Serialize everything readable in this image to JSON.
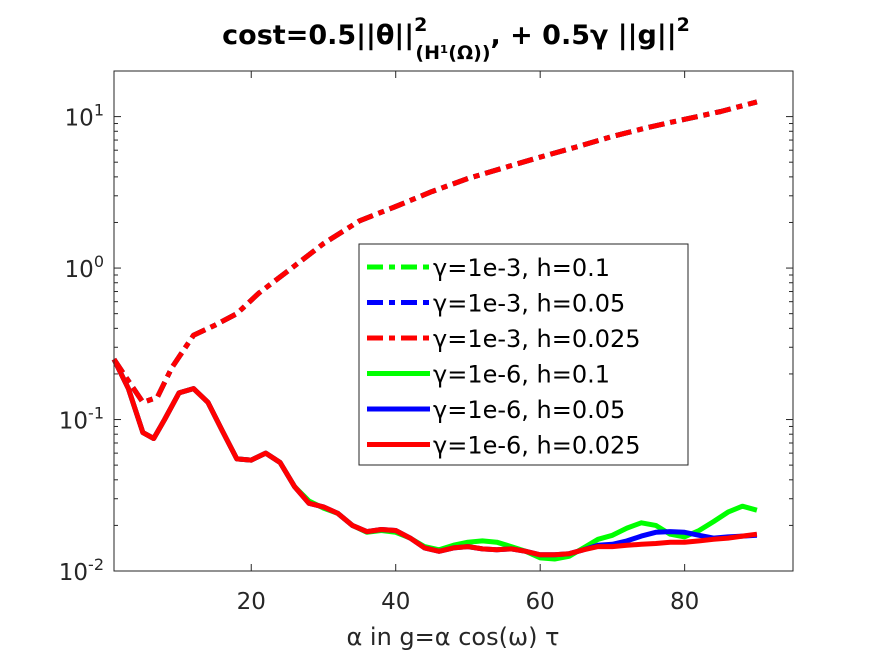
{
  "chart_data": {
    "type": "line",
    "title": {
      "text": "cost=0.5||θ||",
      "sub": "(H¹(Ω))",
      "sup1": "2",
      "tail": ", + 0.5γ ||g||",
      "sup2": "2"
    },
    "xlabel": "α in g=α cos(ω) τ",
    "ylabel": "",
    "xlim": [
      1,
      95
    ],
    "ylim": [
      0.01,
      20
    ],
    "yscale": "log",
    "grid": false,
    "x_ticks": [
      20,
      40,
      60,
      80
    ],
    "x_tick_labels": [
      "20",
      "40",
      "60",
      "80"
    ],
    "y_ticks": [
      {
        "value": 0.01,
        "base": "10",
        "exp": "-2"
      },
      {
        "value": 0.1,
        "base": "10",
        "exp": "-1"
      },
      {
        "value": 1,
        "base": "10",
        "exp": "0"
      },
      {
        "value": 10,
        "base": "10",
        "exp": "1"
      }
    ],
    "legend_position": "center-right",
    "series": [
      {
        "name": "γ=1e-3, h=0.1",
        "color": "#00ff00",
        "dash": true,
        "x": [
          1,
          3,
          5,
          7,
          9,
          12,
          15,
          18,
          21,
          25,
          30,
          35,
          40,
          45,
          50,
          55,
          60,
          65,
          70,
          75,
          80,
          85,
          90
        ],
        "y": [
          0.25,
          0.18,
          0.13,
          0.14,
          0.22,
          0.36,
          0.42,
          0.5,
          0.68,
          0.95,
          1.45,
          2.05,
          2.55,
          3.2,
          3.9,
          4.6,
          5.4,
          6.3,
          7.4,
          8.5,
          9.6,
          10.8,
          12.5
        ]
      },
      {
        "name": "γ=1e-3, h=0.05",
        "color": "#0000ff",
        "dash": true,
        "x": [
          1,
          3,
          5,
          7,
          9,
          12,
          15,
          18,
          21,
          25,
          30,
          35,
          40,
          45,
          50,
          55,
          60,
          65,
          70,
          75,
          80,
          85,
          90
        ],
        "y": [
          0.25,
          0.18,
          0.13,
          0.14,
          0.22,
          0.36,
          0.42,
          0.5,
          0.68,
          0.95,
          1.45,
          2.05,
          2.55,
          3.2,
          3.9,
          4.6,
          5.4,
          6.3,
          7.4,
          8.5,
          9.6,
          10.8,
          12.5
        ]
      },
      {
        "name": "γ=1e-3, h=0.025",
        "color": "#ff0000",
        "dash": true,
        "x": [
          1,
          3,
          5,
          7,
          9,
          12,
          15,
          18,
          21,
          25,
          30,
          35,
          40,
          45,
          50,
          55,
          60,
          65,
          70,
          75,
          80,
          85,
          90
        ],
        "y": [
          0.25,
          0.18,
          0.13,
          0.14,
          0.22,
          0.36,
          0.42,
          0.5,
          0.68,
          0.95,
          1.45,
          2.05,
          2.55,
          3.2,
          3.9,
          4.6,
          5.4,
          6.3,
          7.4,
          8.5,
          9.6,
          10.8,
          12.5
        ]
      },
      {
        "name": "γ=1e-6, h=0.1",
        "color": "#00ff00",
        "dash": false,
        "x": [
          1,
          3,
          5,
          6.5,
          8,
          10,
          12,
          14,
          16,
          18,
          20,
          22,
          24,
          26,
          28,
          30,
          32,
          34,
          36,
          38,
          40,
          42,
          44,
          46,
          48,
          50,
          52,
          54,
          56,
          58,
          60,
          62,
          64,
          66,
          68,
          70,
          72,
          74,
          76,
          78,
          80,
          82,
          84,
          86,
          88,
          90
        ],
        "y": [
          0.25,
          0.16,
          0.082,
          0.075,
          0.1,
          0.15,
          0.16,
          0.13,
          0.084,
          0.055,
          0.054,
          0.06,
          0.052,
          0.036,
          0.029,
          0.026,
          0.024,
          0.02,
          0.018,
          0.0185,
          0.018,
          0.0165,
          0.0145,
          0.0138,
          0.0148,
          0.0155,
          0.0158,
          0.0155,
          0.0145,
          0.0135,
          0.0122,
          0.012,
          0.0125,
          0.0142,
          0.0162,
          0.0172,
          0.0192,
          0.0208,
          0.02,
          0.0175,
          0.0168,
          0.0185,
          0.0212,
          0.0245,
          0.0268,
          0.0252
        ]
      },
      {
        "name": "γ=1e-6, h=0.05",
        "color": "#0000ff",
        "dash": false,
        "x": [
          1,
          3,
          5,
          6.5,
          8,
          10,
          12,
          14,
          16,
          18,
          20,
          22,
          24,
          26,
          28,
          30,
          32,
          34,
          36,
          38,
          40,
          42,
          44,
          46,
          48,
          50,
          52,
          54,
          56,
          58,
          60,
          62,
          64,
          66,
          68,
          70,
          72,
          74,
          76,
          78,
          80,
          82,
          84,
          86,
          88,
          90
        ],
        "y": [
          0.25,
          0.16,
          0.082,
          0.075,
          0.1,
          0.15,
          0.16,
          0.13,
          0.084,
          0.055,
          0.054,
          0.06,
          0.052,
          0.036,
          0.028,
          0.0265,
          0.024,
          0.02,
          0.0182,
          0.0188,
          0.0185,
          0.0165,
          0.0142,
          0.0135,
          0.0142,
          0.0145,
          0.014,
          0.0138,
          0.014,
          0.0135,
          0.0128,
          0.0128,
          0.013,
          0.0138,
          0.0148,
          0.015,
          0.0158,
          0.017,
          0.018,
          0.0182,
          0.018,
          0.0172,
          0.0165,
          0.0168,
          0.017,
          0.0172
        ]
      },
      {
        "name": "γ=1e-6, h=0.025",
        "color": "#ff0000",
        "dash": false,
        "x": [
          1,
          3,
          5,
          6.5,
          8,
          10,
          12,
          14,
          16,
          18,
          20,
          22,
          24,
          26,
          28,
          30,
          32,
          34,
          36,
          38,
          40,
          42,
          44,
          46,
          48,
          50,
          52,
          54,
          56,
          58,
          60,
          62,
          64,
          66,
          68,
          70,
          72,
          74,
          76,
          78,
          80,
          82,
          84,
          86,
          88,
          90
        ],
        "y": [
          0.25,
          0.16,
          0.082,
          0.075,
          0.1,
          0.15,
          0.16,
          0.13,
          0.084,
          0.055,
          0.054,
          0.06,
          0.052,
          0.036,
          0.028,
          0.0265,
          0.024,
          0.02,
          0.0182,
          0.0188,
          0.0185,
          0.0165,
          0.0142,
          0.0135,
          0.0142,
          0.0145,
          0.014,
          0.0138,
          0.014,
          0.0135,
          0.0128,
          0.0128,
          0.013,
          0.0138,
          0.0145,
          0.0145,
          0.0148,
          0.015,
          0.0152,
          0.0155,
          0.0155,
          0.0158,
          0.0162,
          0.0165,
          0.017,
          0.0175
        ]
      }
    ]
  }
}
